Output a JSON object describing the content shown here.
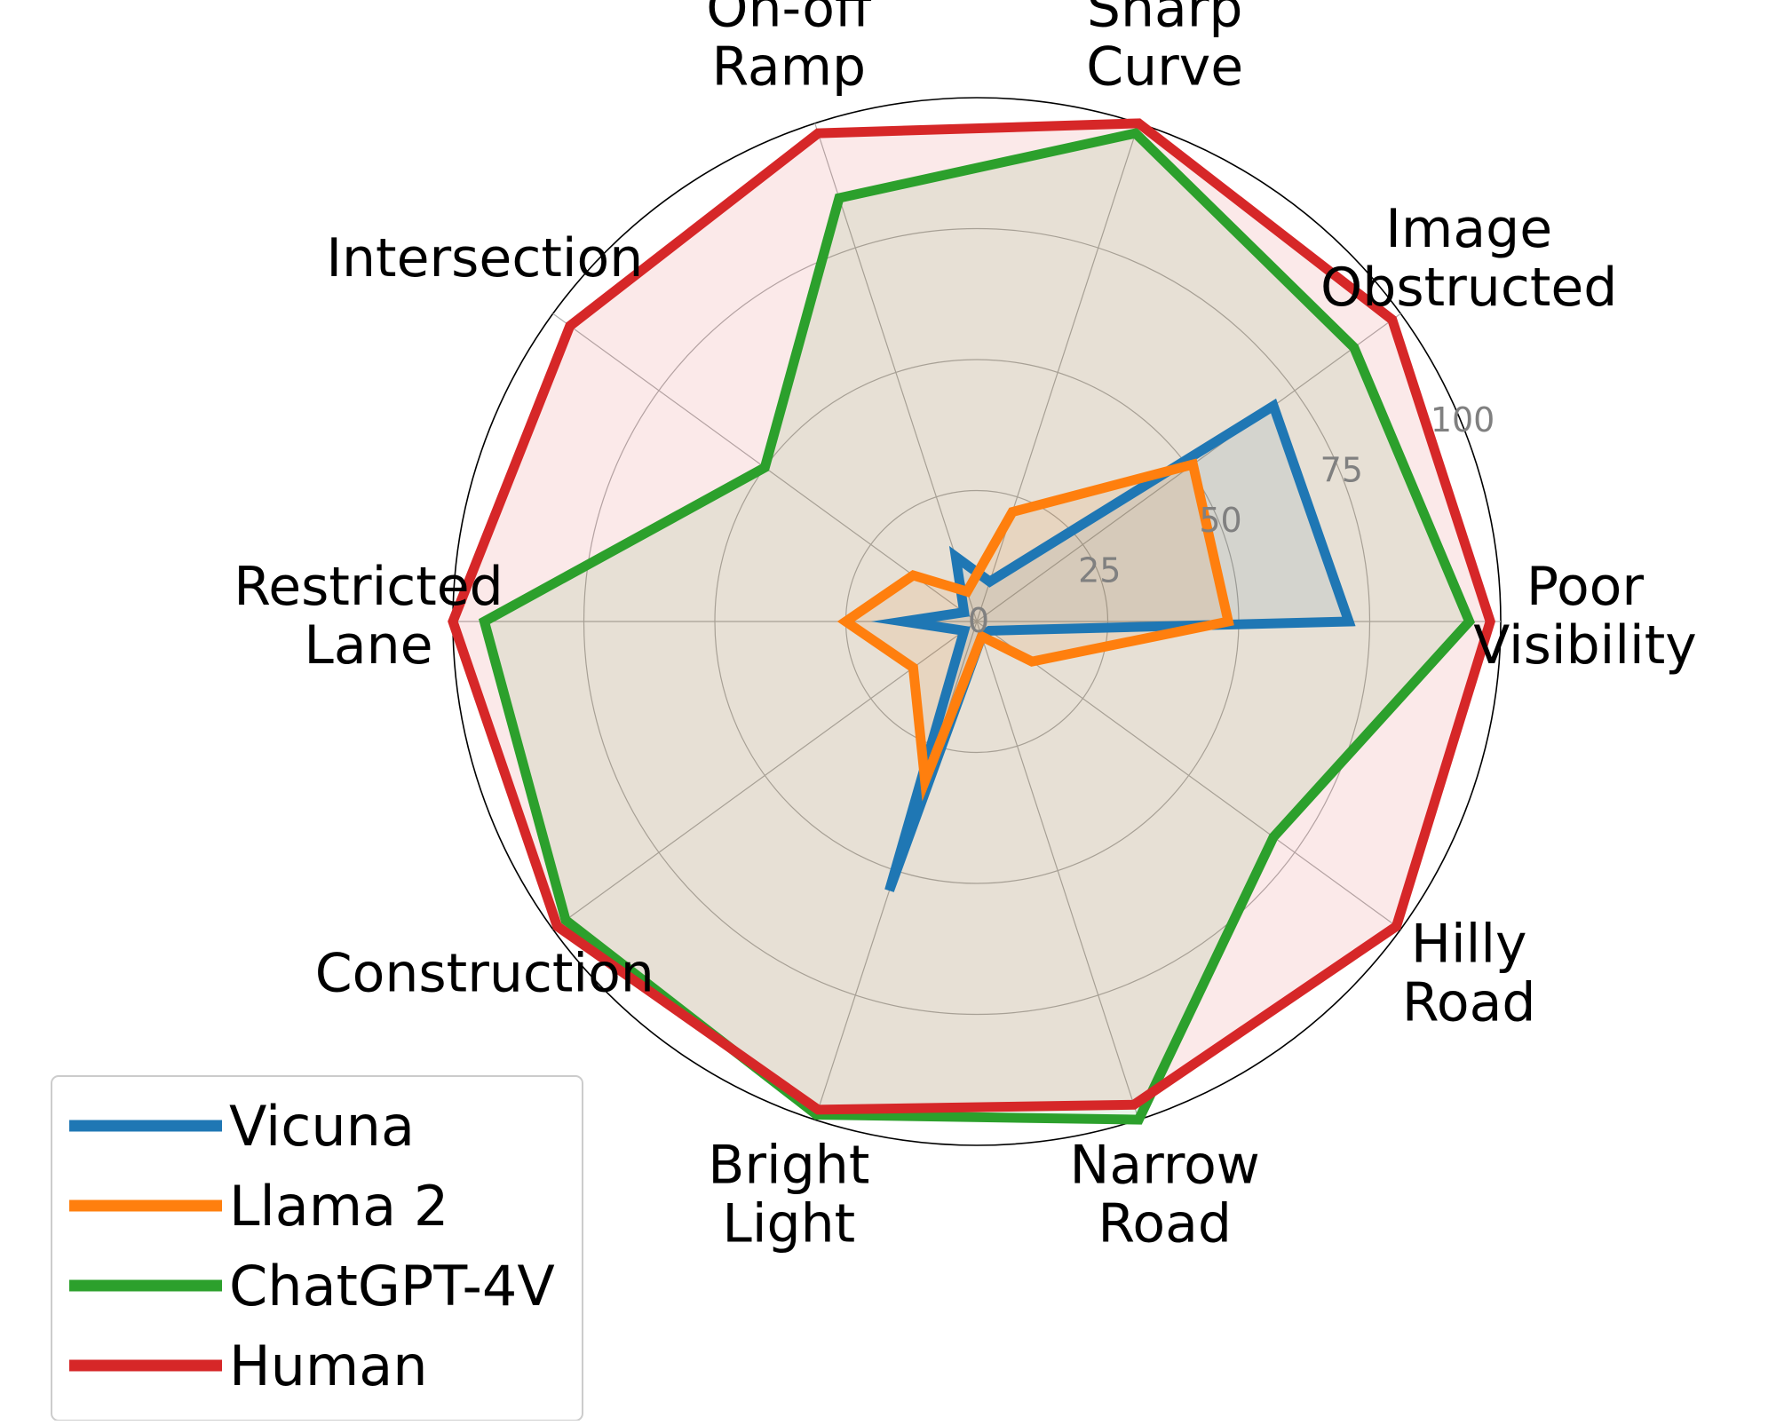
{
  "chart_data": {
    "type": "radar",
    "categories": [
      "Poor\nVisibility",
      "Image\nObstructed",
      "Sharp\nCurve",
      "On-off\nRamp",
      "Intersection",
      "Restricted\nLane",
      "Construction",
      "Bright\nLight",
      "Narrow\nRoad",
      "Hilly\nRoad"
    ],
    "rlim": [
      0,
      100
    ],
    "rticks": [
      "0",
      "25",
      "50",
      "75",
      "100"
    ],
    "rtick_values": [
      0,
      25,
      50,
      75,
      100
    ],
    "grid": true,
    "legend_position": "lower-left",
    "series": [
      {
        "name": "Vicuna",
        "color": "#1f77b4",
        "values": [
          71,
          70,
          8,
          13,
          3,
          14,
          3,
          54,
          3,
          3
        ]
      },
      {
        "name": "Llama 2",
        "color": "#ff7f0e",
        "values": [
          48,
          51,
          22,
          6,
          15,
          25,
          15,
          32,
          3,
          13
        ]
      },
      {
        "name": "ChatGPT-4V",
        "color": "#2ca02c",
        "values": [
          94,
          89,
          98,
          85,
          50,
          94,
          97,
          99,
          100,
          70
        ]
      },
      {
        "name": "Human",
        "color": "#d62728",
        "values": [
          98,
          98,
          100,
          98,
          96,
          100,
          99,
          98,
          97,
          99
        ]
      }
    ]
  }
}
